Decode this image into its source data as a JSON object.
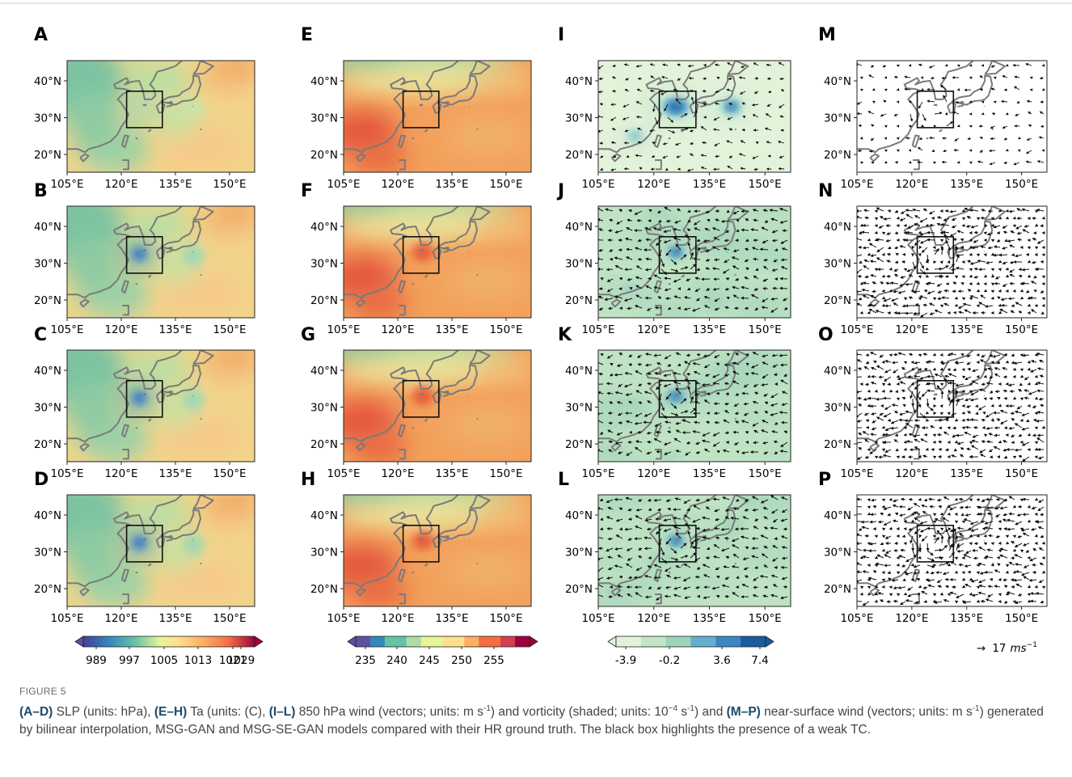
{
  "figure": {
    "panels": [
      {
        "label": "A"
      },
      {
        "label": "B"
      },
      {
        "label": "C"
      },
      {
        "label": "D"
      },
      {
        "label": "E"
      },
      {
        "label": "F"
      },
      {
        "label": "G"
      },
      {
        "label": "H"
      },
      {
        "label": "I"
      },
      {
        "label": "J"
      },
      {
        "label": "K"
      },
      {
        "label": "L"
      },
      {
        "label": "M"
      },
      {
        "label": "N"
      },
      {
        "label": "O"
      },
      {
        "label": "P"
      }
    ],
    "lat_ticks": [
      "40°N",
      "30°N",
      "20°N"
    ],
    "lon_ticks": [
      "105°E",
      "120°E",
      "135°E",
      "150°E"
    ],
    "colorbars": [
      {
        "labels": [
          "989",
          "997",
          "1005",
          "1013",
          "1021",
          "1029"
        ]
      },
      {
        "labels": [
          "235",
          "240",
          "245",
          "250",
          "255"
        ]
      },
      {
        "labels": [
          "-3.9",
          "-0.2",
          "3.6",
          "7.4"
        ]
      }
    ],
    "wind_reference": {
      "arrow": "→",
      "value": "17",
      "unit": "ms",
      "unit_exp": "−1"
    }
  },
  "caption": {
    "label": "FIGURE 5",
    "runs": [
      {
        "text": "(A–D)",
        "bold": true
      },
      {
        "text": " SLP (units: hPa), "
      },
      {
        "text": "(E–H)",
        "bold": true
      },
      {
        "text": " Ta (units: (C), "
      },
      {
        "text": "(I–L)",
        "bold": true
      },
      {
        "text": " 850 hPa wind (vectors; units: m s"
      },
      {
        "text": "-1",
        "sup": true
      },
      {
        "text": ") and vorticity (shaded; units: 10"
      },
      {
        "text": "−4",
        "sup": true
      },
      {
        "text": " s"
      },
      {
        "text": "-1",
        "sup": true
      },
      {
        "text": ") and "
      },
      {
        "text": "(M–P)",
        "bold": true
      },
      {
        "text": " near-surface wind (vectors; units: m s"
      },
      {
        "text": "-1",
        "sup": true
      },
      {
        "text": ") generated by bilinear interpolation, MSG-GAN and MSG-SE-GAN models compared with their HR ground truth. The black box highlights the presence of a weak TC."
      }
    ]
  }
}
